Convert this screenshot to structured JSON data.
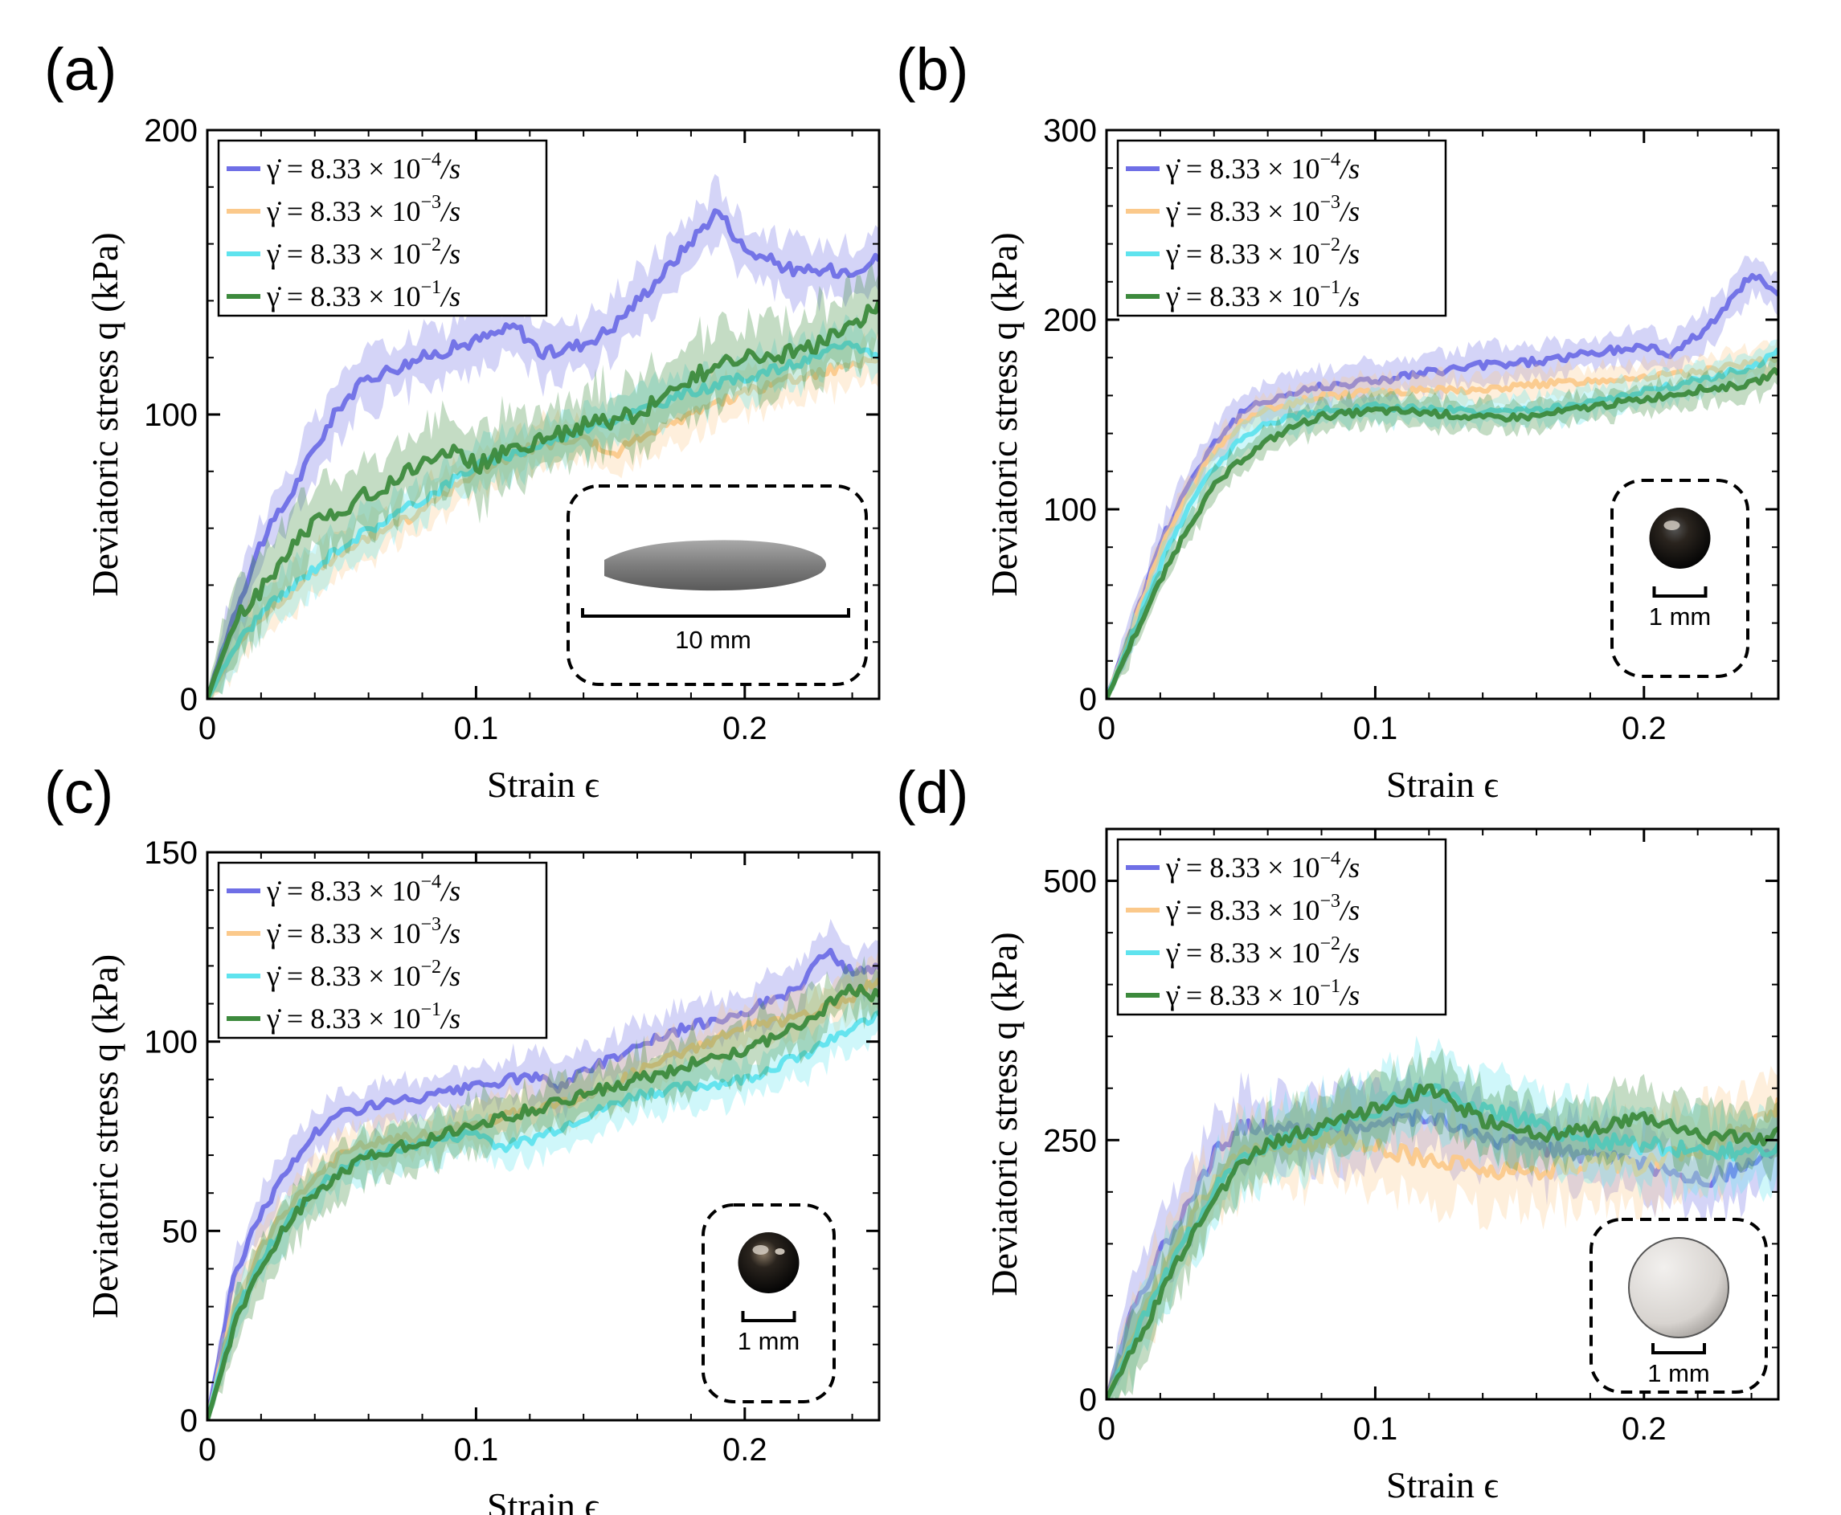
{
  "colors": {
    "rate1": "#6f6fe6",
    "rate2": "#fbc98b",
    "rate3": "#5fe3ee",
    "rate4": "#3d8a3d"
  },
  "legend_entries": [
    {
      "lhs": "γ̇ = 8.33 × 10",
      "exp": "−4",
      "unit": "/s"
    },
    {
      "lhs": "γ̇ = 8.33 × 10",
      "exp": "−3",
      "unit": "/s"
    },
    {
      "lhs": "γ̇ = 8.33 × 10",
      "exp": "−2",
      "unit": "/s"
    },
    {
      "lhs": "γ̇ = 8.33 × 10",
      "exp": "−1",
      "unit": "/s"
    }
  ],
  "chart_data": [
    {
      "panel": "(a)",
      "type": "line",
      "xlabel": "Strain ϵ",
      "ylabel": "Deviatoric stress q (kPa)",
      "xlim": [
        0,
        0.25
      ],
      "ylim": [
        0,
        200
      ],
      "xticks": [
        "0",
        "0.1",
        "0.2"
      ],
      "yticks": [
        "0",
        "100",
        "200"
      ],
      "legend": "top-left",
      "inset": {
        "shape": "elongated",
        "scale_label": "10 mm"
      },
      "series": [
        {
          "name": "γ̇ = 8.33 × 10^-4 /s",
          "x": [
            0,
            0.01,
            0.02,
            0.03,
            0.04,
            0.05,
            0.06,
            0.08,
            0.1,
            0.115,
            0.125,
            0.14,
            0.15,
            0.17,
            0.19,
            0.2,
            0.22,
            0.24,
            0.25
          ],
          "y": [
            0,
            30,
            55,
            70,
            88,
            104,
            113,
            120,
            126,
            131,
            121,
            125,
            130,
            150,
            172,
            158,
            150,
            151,
            155
          ],
          "band": 10
        },
        {
          "name": "γ̇ = 8.33 × 10^-3 /s",
          "x": [
            0,
            0.01,
            0.02,
            0.03,
            0.05,
            0.08,
            0.1,
            0.12,
            0.14,
            0.15,
            0.16,
            0.18,
            0.2,
            0.22,
            0.25
          ],
          "y": [
            0,
            18,
            28,
            37,
            52,
            66,
            80,
            88,
            92,
            85,
            92,
            100,
            108,
            113,
            120
          ],
          "band": 8
        },
        {
          "name": "γ̇ = 8.33 × 10^-2 /s",
          "x": [
            0,
            0.01,
            0.02,
            0.03,
            0.05,
            0.08,
            0.1,
            0.12,
            0.14,
            0.16,
            0.18,
            0.2,
            0.22,
            0.24,
            0.25
          ],
          "y": [
            0,
            18,
            30,
            38,
            54,
            70,
            82,
            88,
            95,
            101,
            108,
            113,
            118,
            125,
            120
          ],
          "band": 8
        },
        {
          "name": "γ̇ = 8.33 × 10^-1 /s",
          "x": [
            0,
            0.01,
            0.02,
            0.03,
            0.04,
            0.06,
            0.08,
            0.09,
            0.1,
            0.12,
            0.14,
            0.16,
            0.18,
            0.2,
            0.22,
            0.24,
            0.25
          ],
          "y": [
            0,
            27,
            38,
            52,
            62,
            72,
            83,
            88,
            82,
            90,
            96,
            100,
            113,
            120,
            122,
            130,
            140
          ],
          "band": 13
        }
      ]
    },
    {
      "panel": "(b)",
      "type": "line",
      "xlabel": "Strain ϵ",
      "ylabel": "Deviatoric stress q (kPa)",
      "xlim": [
        0,
        0.25
      ],
      "ylim": [
        0,
        300
      ],
      "xticks": [
        "0",
        "0.1",
        "0.2"
      ],
      "yticks": [
        "0",
        "100",
        "200",
        "300"
      ],
      "legend": "top-left",
      "inset": {
        "shape": "sphere-dark",
        "scale_label": "1 mm"
      },
      "series": [
        {
          "name": "γ̇ = 8.33 × 10^-4 /s",
          "x": [
            0,
            0.01,
            0.02,
            0.03,
            0.04,
            0.05,
            0.06,
            0.08,
            0.1,
            0.12,
            0.14,
            0.16,
            0.18,
            0.2,
            0.21,
            0.22,
            0.23,
            0.24,
            0.25
          ],
          "y": [
            0,
            40,
            82,
            112,
            135,
            150,
            158,
            165,
            168,
            172,
            176,
            178,
            182,
            186,
            182,
            192,
            205,
            225,
            212
          ],
          "band": 10
        },
        {
          "name": "γ̇ = 8.33 × 10^-3 /s",
          "x": [
            0,
            0.01,
            0.02,
            0.03,
            0.04,
            0.05,
            0.06,
            0.08,
            0.1,
            0.12,
            0.14,
            0.16,
            0.18,
            0.2,
            0.22,
            0.24,
            0.25
          ],
          "y": [
            0,
            38,
            78,
            108,
            130,
            145,
            153,
            160,
            162,
            163,
            163,
            166,
            168,
            170,
            172,
            177,
            180
          ],
          "band": 8
        },
        {
          "name": "γ̇ = 8.33 × 10^-2 /s",
          "x": [
            0,
            0.01,
            0.02,
            0.03,
            0.04,
            0.05,
            0.06,
            0.08,
            0.1,
            0.12,
            0.14,
            0.16,
            0.18,
            0.2,
            0.22,
            0.24,
            0.25
          ],
          "y": [
            0,
            35,
            70,
            100,
            122,
            138,
            146,
            152,
            154,
            153,
            151,
            152,
            156,
            162,
            168,
            175,
            183
          ],
          "band": 8
        },
        {
          "name": "γ̇ = 8.33 × 10^-1 /s",
          "x": [
            0,
            0.01,
            0.02,
            0.03,
            0.04,
            0.05,
            0.06,
            0.07,
            0.08,
            0.1,
            0.12,
            0.14,
            0.16,
            0.18,
            0.2,
            0.22,
            0.24,
            0.25
          ],
          "y": [
            0,
            32,
            62,
            90,
            112,
            126,
            136,
            144,
            149,
            152,
            151,
            148,
            149,
            154,
            158,
            163,
            166,
            173
          ],
          "band": 8
        }
      ]
    },
    {
      "panel": "(c)",
      "type": "line",
      "xlabel": "Strain ϵ",
      "ylabel": "Deviatoric stress q (kPa)",
      "xlim": [
        0,
        0.25
      ],
      "ylim": [
        0,
        150
      ],
      "xticks": [
        "0",
        "0.1",
        "0.2"
      ],
      "yticks": [
        "0",
        "50",
        "100",
        "150"
      ],
      "legend": "top-left",
      "inset": {
        "shape": "sphere-shiny",
        "scale_label": "1 mm"
      },
      "series": [
        {
          "name": "γ̇ = 8.33 × 10^-4 /s",
          "x": [
            0,
            0.01,
            0.02,
            0.03,
            0.04,
            0.05,
            0.06,
            0.08,
            0.1,
            0.12,
            0.13,
            0.14,
            0.16,
            0.18,
            0.2,
            0.22,
            0.23,
            0.24,
            0.25
          ],
          "y": [
            0,
            38,
            55,
            66,
            76,
            81,
            83,
            85,
            88,
            91,
            88,
            92,
            99,
            104,
            108,
            114,
            124,
            118,
            120
          ],
          "band": 6
        },
        {
          "name": "γ̇ = 8.33 × 10^-3 /s",
          "x": [
            0,
            0.01,
            0.02,
            0.03,
            0.04,
            0.05,
            0.06,
            0.08,
            0.1,
            0.12,
            0.14,
            0.16,
            0.18,
            0.2,
            0.22,
            0.24,
            0.25
          ],
          "y": [
            0,
            30,
            45,
            56,
            64,
            70,
            73,
            75,
            78,
            82,
            85,
            92,
            98,
            104,
            106,
            112,
            117
          ],
          "band": 6
        },
        {
          "name": "γ̇ = 8.33 × 10^-2 /s",
          "x": [
            0,
            0.01,
            0.02,
            0.03,
            0.04,
            0.05,
            0.06,
            0.08,
            0.1,
            0.11,
            0.12,
            0.14,
            0.16,
            0.18,
            0.2,
            0.22,
            0.24,
            0.25
          ],
          "y": [
            0,
            27,
            42,
            53,
            61,
            66,
            70,
            73,
            76,
            72,
            74,
            80,
            86,
            88,
            90,
            96,
            103,
            108
          ],
          "band": 6
        },
        {
          "name": "γ̇ = 8.33 × 10^-1 /s",
          "x": [
            0,
            0.01,
            0.02,
            0.03,
            0.04,
            0.05,
            0.06,
            0.08,
            0.1,
            0.12,
            0.14,
            0.16,
            0.18,
            0.2,
            0.22,
            0.24,
            0.25
          ],
          "y": [
            0,
            25,
            40,
            52,
            60,
            65,
            70,
            74,
            78,
            82,
            86,
            90,
            94,
            98,
            104,
            114,
            112
          ],
          "band": 7
        }
      ]
    },
    {
      "panel": "(d)",
      "type": "line",
      "xlabel": "Strain ϵ",
      "ylabel": "Deviatoric stress q (kPa)",
      "xlim": [
        0,
        0.25
      ],
      "ylim": [
        0,
        550
      ],
      "xticks": [
        "0",
        "0.1",
        "0.2"
      ],
      "yticks": [
        "0",
        "250",
        "500"
      ],
      "legend": "top-left",
      "inset": {
        "shape": "disc-white",
        "scale_label": "1 mm"
      },
      "series": [
        {
          "name": "γ̇ = 8.33 × 10^-4 /s",
          "x": [
            0,
            0.01,
            0.02,
            0.03,
            0.04,
            0.05,
            0.06,
            0.08,
            0.1,
            0.12,
            0.14,
            0.16,
            0.18,
            0.2,
            0.22,
            0.24,
            0.25
          ],
          "y": [
            0,
            90,
            140,
            190,
            235,
            265,
            260,
            260,
            265,
            275,
            250,
            245,
            235,
            225,
            210,
            225,
            240
          ],
          "band": 35
        },
        {
          "name": "γ̇ = 8.33 × 10^-3 /s",
          "x": [
            0,
            0.01,
            0.02,
            0.03,
            0.04,
            0.05,
            0.06,
            0.08,
            0.1,
            0.12,
            0.14,
            0.16,
            0.18,
            0.2,
            0.22,
            0.24,
            0.25
          ],
          "y": [
            0,
            60,
            120,
            170,
            210,
            235,
            245,
            250,
            245,
            230,
            220,
            220,
            230,
            225,
            240,
            265,
            285
          ],
          "band": 40
        },
        {
          "name": "γ̇ = 8.33 × 10^-2 /s",
          "x": [
            0,
            0.01,
            0.02,
            0.03,
            0.04,
            0.05,
            0.06,
            0.08,
            0.1,
            0.12,
            0.14,
            0.16,
            0.18,
            0.2,
            0.22,
            0.24,
            0.25
          ],
          "y": [
            0,
            55,
            110,
            160,
            200,
            230,
            245,
            260,
            280,
            300,
            280,
            265,
            250,
            245,
            240,
            238,
            240
          ],
          "band": 35
        },
        {
          "name": "γ̇ = 8.33 × 10^-1 /s",
          "x": [
            0,
            0.01,
            0.02,
            0.03,
            0.04,
            0.05,
            0.06,
            0.08,
            0.1,
            0.12,
            0.14,
            0.16,
            0.18,
            0.2,
            0.22,
            0.24,
            0.25
          ],
          "y": [
            0,
            50,
            100,
            150,
            195,
            225,
            245,
            265,
            280,
            300,
            270,
            255,
            260,
            270,
            255,
            250,
            255
          ],
          "band": 30
        }
      ]
    }
  ]
}
